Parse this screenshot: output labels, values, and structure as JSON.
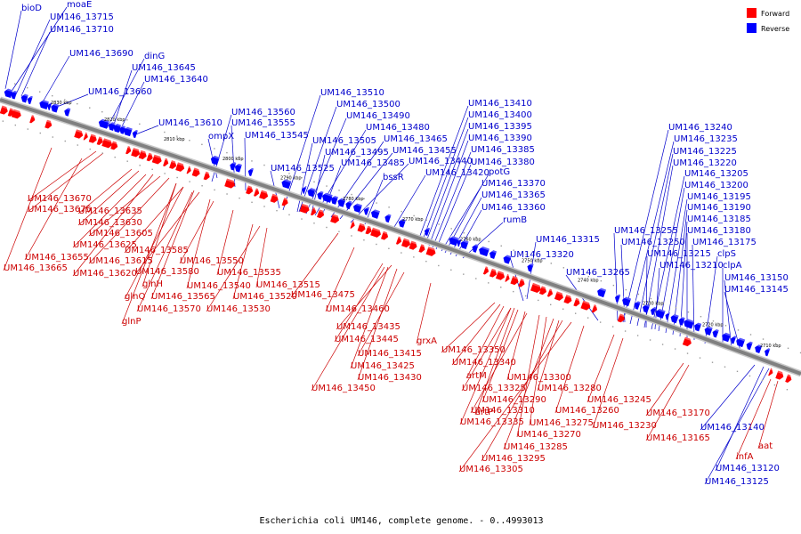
{
  "caption": "Escherichia coli UM146, complete genome. - 0..4993013",
  "colors": {
    "forward": "#ff0000",
    "reverse": "#0000ff",
    "backbone": "#808080",
    "label_forward": "#cc0000",
    "label_reverse": "#0000cc"
  },
  "legend": {
    "forward": "Forward",
    "reverse": "Reverse"
  },
  "ticks": [
    "2830 kbp",
    "2820 kbp",
    "2810 kbp",
    "2800 kbp",
    "2790 kbp",
    "2780 kbp",
    "2770 kbp",
    "2760 kbp",
    "2750 kbp",
    "2740 kbp",
    "2730 kbp",
    "2720 kbp",
    "2710 kbp"
  ],
  "reverse_labels": [
    "bioD",
    "moaE",
    "UM146_13715",
    "UM146_13710",
    "dinG",
    "UM146_13645",
    "UM146_13690",
    "UM146_13640",
    "UM146_13660",
    "UM146_13610",
    "UM146_13560",
    "ompX",
    "UM146_13555",
    "UM146_13545",
    "UM146_13510",
    "UM146_13500",
    "UM146_13490",
    "UM146_13480",
    "UM146_13505",
    "UM146_13465",
    "UM146_13495",
    "UM146_13455",
    "UM146_13485",
    "UM146_13440",
    "UM146_13525",
    "bssR",
    "UM146_13420",
    "UM146_13410",
    "UM146_13400",
    "UM146_13395",
    "UM146_13390",
    "UM146_13385",
    "potG",
    "UM146_13380",
    "UM146_13370",
    "UM146_13365",
    "UM146_13360",
    "rumB",
    "UM146_13315",
    "UM146_13320",
    "UM146_13265",
    "UM146_13240",
    "UM146_13235",
    "UM146_13225",
    "UM146_13220",
    "UM146_13205",
    "UM146_13200",
    "UM146_13195",
    "UM146_13190",
    "UM146_13185",
    "UM146_13255",
    "UM146_13180",
    "UM146_13250",
    "UM146_13175",
    "UM146_13215",
    "clpS",
    "UM146_13210",
    "clpA",
    "UM146_13150",
    "UM146_13145",
    "UM146_13140",
    "UM146_13120",
    "UM146_13125"
  ],
  "forward_labels": [
    "UM146_13670",
    "UM146_13675",
    "UM146_13635",
    "UM146_13630",
    "UM146_13605",
    "UM146_13625",
    "UM146_13655",
    "UM146_13615",
    "UM146_13585",
    "UM146_13665",
    "UM146_13620",
    "UM146_13580",
    "UM146_13550",
    "glnH",
    "UM146_13535",
    "UM146_13540",
    "UM146_13515",
    "glnQ",
    "UM146_13565",
    "UM146_13520",
    "UM146_13475",
    "UM146_13570",
    "UM146_13530",
    "glnP",
    "UM146_13460",
    "UM146_13435",
    "UM146_13445",
    "grxA",
    "UM146_13415",
    "UM146_13425",
    "UM146_13430",
    "UM146_13450",
    "UM146_13350",
    "UM146_13340",
    "artM",
    "UM146_13300",
    "UM146_13325",
    "UM146_13280",
    "UM146_13290",
    "artP",
    "UM146_13310",
    "UM146_13260",
    "UM146_13245",
    "UM146_13335",
    "UM146_13275",
    "UM146_13230",
    "UM146_13170",
    "UM146_13270",
    "UM146_13165",
    "UM146_13285",
    "UM146_13295",
    "aat",
    "UM146_13305",
    "infA"
  ]
}
